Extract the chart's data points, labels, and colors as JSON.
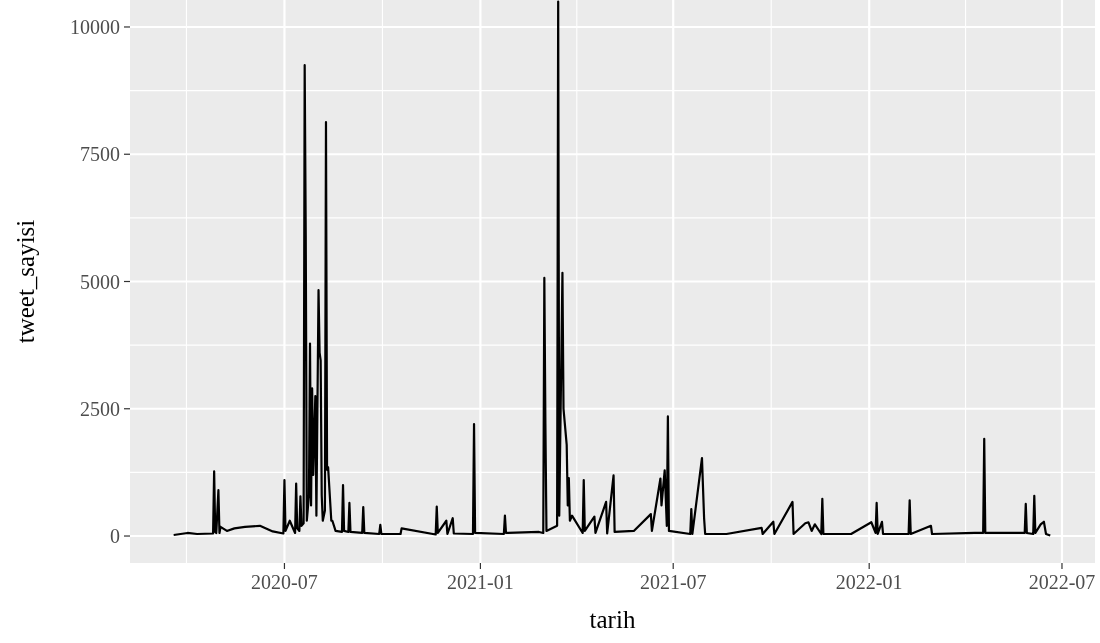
{
  "chart_data": {
    "type": "line",
    "xlabel": "tarih",
    "ylabel": "tweet_sayisi",
    "xlim": [
      "2020-02-07",
      "2022-08-01"
    ],
    "xticks": [
      {
        "value": "2020-07-01",
        "label": "2020-07"
      },
      {
        "value": "2021-01-01",
        "label": "2021-01"
      },
      {
        "value": "2021-07-01",
        "label": "2021-07"
      },
      {
        "value": "2022-01-01",
        "label": "2022-01"
      },
      {
        "value": "2022-07-01",
        "label": "2022-07"
      }
    ],
    "ylim": [
      -530,
      10530
    ],
    "yticks": [
      0,
      2500,
      5000,
      7500,
      10000
    ],
    "grid": true,
    "line_style": "solid",
    "marker": "none",
    "series": [
      {
        "color": "#000000",
        "x": [
          "2020-03-19",
          "2020-04-01",
          "2020-04-10",
          "2020-04-25",
          "2020-04-26",
          "2020-04-27",
          "2020-04-28",
          "2020-04-30",
          "2020-05-01",
          "2020-05-02",
          "2020-05-08",
          "2020-05-15",
          "2020-05-25",
          "2020-06-08",
          "2020-06-20",
          "2020-06-30",
          "2020-07-01",
          "2020-07-02",
          "2020-07-06",
          "2020-07-11",
          "2020-07-12",
          "2020-07-13",
          "2020-07-15",
          "2020-07-16",
          "2020-07-17",
          "2020-07-19",
          "2020-07-20",
          "2020-07-21",
          "2020-07-22",
          "2020-07-24",
          "2020-07-25",
          "2020-07-26",
          "2020-07-27",
          "2020-07-28",
          "2020-07-30",
          "2020-07-31",
          "2020-08-02",
          "2020-08-03",
          "2020-08-04",
          "2020-08-05",
          "2020-08-06",
          "2020-08-08",
          "2020-08-09",
          "2020-08-10",
          "2020-08-11",
          "2020-08-14",
          "2020-08-15",
          "2020-08-18",
          "2020-08-24",
          "2020-08-25",
          "2020-08-26",
          "2020-08-30",
          "2020-08-31",
          "2020-09-01",
          "2020-09-12",
          "2020-09-13",
          "2020-09-14",
          "2020-09-28",
          "2020-09-29",
          "2020-09-30",
          "2020-10-18",
          "2020-10-19",
          "2020-11-20",
          "2020-11-21",
          "2020-11-22",
          "2020-11-30",
          "2020-12-01",
          "2020-12-06",
          "2020-12-07",
          "2020-12-25",
          "2020-12-26",
          "2020-12-27",
          "2021-01-23",
          "2021-01-24",
          "2021-01-25",
          "2021-02-25",
          "2021-03-01",
          "2021-03-02",
          "2021-03-03",
          "2021-03-04",
          "2021-03-14",
          "2021-03-15",
          "2021-03-16",
          "2021-03-19",
          "2021-03-20",
          "2021-03-23",
          "2021-03-24",
          "2021-03-25",
          "2021-03-26",
          "2021-03-28",
          "2021-04-07",
          "2021-04-08",
          "2021-04-09",
          "2021-04-18",
          "2021-04-19",
          "2021-04-29",
          "2021-04-30",
          "2021-05-06",
          "2021-05-07",
          "2021-05-25",
          "2021-06-10",
          "2021-06-11",
          "2021-06-19",
          "2021-06-20",
          "2021-06-23",
          "2021-06-25",
          "2021-06-26",
          "2021-06-27",
          "2021-07-17",
          "2021-07-18",
          "2021-07-19",
          "2021-07-28",
          "2021-07-30",
          "2021-07-31",
          "2021-08-20",
          "2021-09-22",
          "2021-09-23",
          "2021-10-03",
          "2021-10-04",
          "2021-10-21",
          "2021-10-22",
          "2021-11-02",
          "2021-11-05",
          "2021-11-08",
          "2021-11-11",
          "2021-11-17",
          "2021-11-18",
          "2021-11-19",
          "2021-12-15",
          "2022-01-03",
          "2022-01-07",
          "2022-01-08",
          "2022-01-09",
          "2022-01-13",
          "2022-01-14",
          "2022-02-07",
          "2022-02-08",
          "2022-02-09",
          "2022-02-28",
          "2022-03-01",
          "2022-04-10",
          "2022-04-18",
          "2022-04-19",
          "2022-04-20",
          "2022-05-10",
          "2022-05-27",
          "2022-05-28",
          "2022-05-29",
          "2022-06-04",
          "2022-06-05",
          "2022-06-06",
          "2022-06-11",
          "2022-06-14",
          "2022-06-16",
          "2022-06-20"
        ],
        "values": [
          20,
          60,
          40,
          50,
          1270,
          80,
          60,
          900,
          60,
          180,
          100,
          150,
          180,
          200,
          90,
          50,
          1100,
          100,
          300,
          60,
          1030,
          150,
          100,
          780,
          200,
          250,
          9250,
          5900,
          300,
          800,
          3780,
          600,
          2900,
          1200,
          2750,
          400,
          4830,
          3600,
          3450,
          800,
          300,
          500,
          8130,
          1300,
          1350,
          300,
          300,
          100,
          80,
          1000,
          100,
          80,
          650,
          80,
          60,
          570,
          60,
          40,
          220,
          40,
          40,
          150,
          30,
          580,
          60,
          300,
          40,
          350,
          50,
          40,
          2200,
          60,
          40,
          400,
          60,
          80,
          60,
          5070,
          2200,
          100,
          200,
          10500,
          400,
          5170,
          2500,
          1790,
          600,
          1140,
          300,
          400,
          60,
          1100,
          100,
          380,
          60,
          670,
          50,
          1190,
          80,
          100,
          430,
          100,
          1130,
          600,
          1290,
          200,
          2350,
          100,
          40,
          530,
          40,
          1530,
          350,
          40,
          40,
          160,
          40,
          280,
          40,
          670,
          40,
          250,
          270,
          100,
          230,
          40,
          730,
          40,
          40,
          270,
          60,
          650,
          40,
          280,
          40,
          40,
          700,
          40,
          200,
          40,
          60,
          60,
          1910,
          60,
          60,
          60,
          630,
          60,
          40,
          790,
          60,
          230,
          280,
          40,
          10
        ]
      }
    ]
  }
}
